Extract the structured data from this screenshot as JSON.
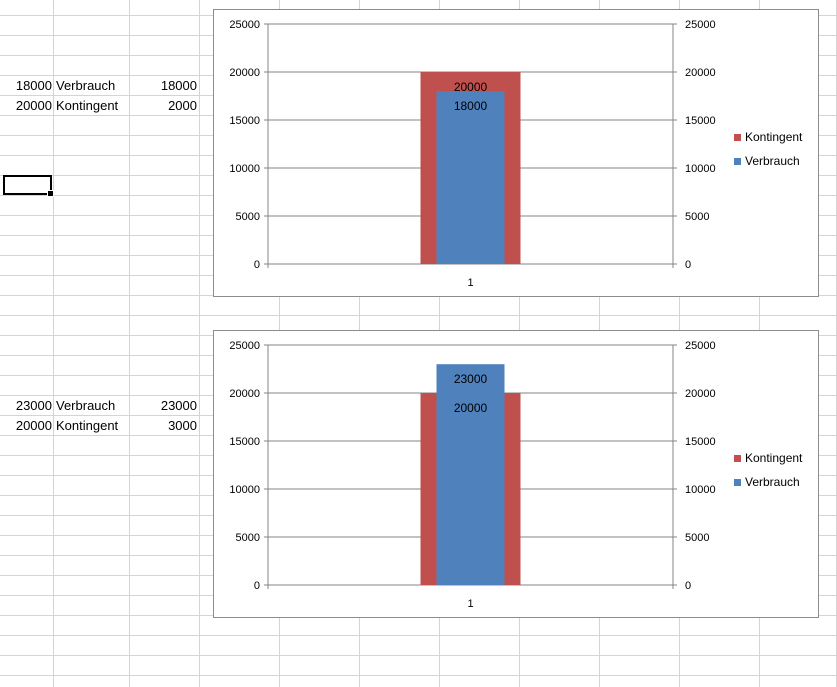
{
  "sheet": {
    "rows": [
      {
        "a": "18000",
        "b": "Verbrauch",
        "c": "18000"
      },
      {
        "a": "20000",
        "b": "Kontingent",
        "c": "2000"
      },
      {
        "a": "23000",
        "b": "Verbrauch",
        "c": "23000"
      },
      {
        "a": "20000",
        "b": "Kontingent",
        "c": "3000"
      }
    ]
  },
  "colors": {
    "kontingent": "#c0504d",
    "verbrauch": "#4f81bd",
    "gridline": "#868686",
    "cell_border": "#d4d4d4"
  },
  "chart_data": [
    {
      "type": "bar",
      "categories": [
        "1"
      ],
      "series": [
        {
          "name": "Kontingent",
          "values": [
            20000
          ],
          "color": "#c0504d",
          "axis": "primary"
        },
        {
          "name": "Verbrauch",
          "values": [
            18000
          ],
          "color": "#4f81bd",
          "axis": "secondary"
        }
      ],
      "ylim": [
        0,
        25000
      ],
      "ylim_secondary": [
        0,
        25000
      ],
      "yticks": [
        "0",
        "5000",
        "10000",
        "15000",
        "20000",
        "25000"
      ],
      "grid": true,
      "legend": "right"
    },
    {
      "type": "bar",
      "categories": [
        "1"
      ],
      "series": [
        {
          "name": "Kontingent",
          "values": [
            20000
          ],
          "color": "#c0504d",
          "axis": "primary"
        },
        {
          "name": "Verbrauch",
          "values": [
            23000
          ],
          "color": "#4f81bd",
          "axis": "secondary"
        }
      ],
      "ylim": [
        0,
        25000
      ],
      "ylim_secondary": [
        0,
        25000
      ],
      "yticks": [
        "0",
        "5000",
        "10000",
        "15000",
        "20000",
        "25000"
      ],
      "grid": true,
      "legend": "right"
    }
  ]
}
